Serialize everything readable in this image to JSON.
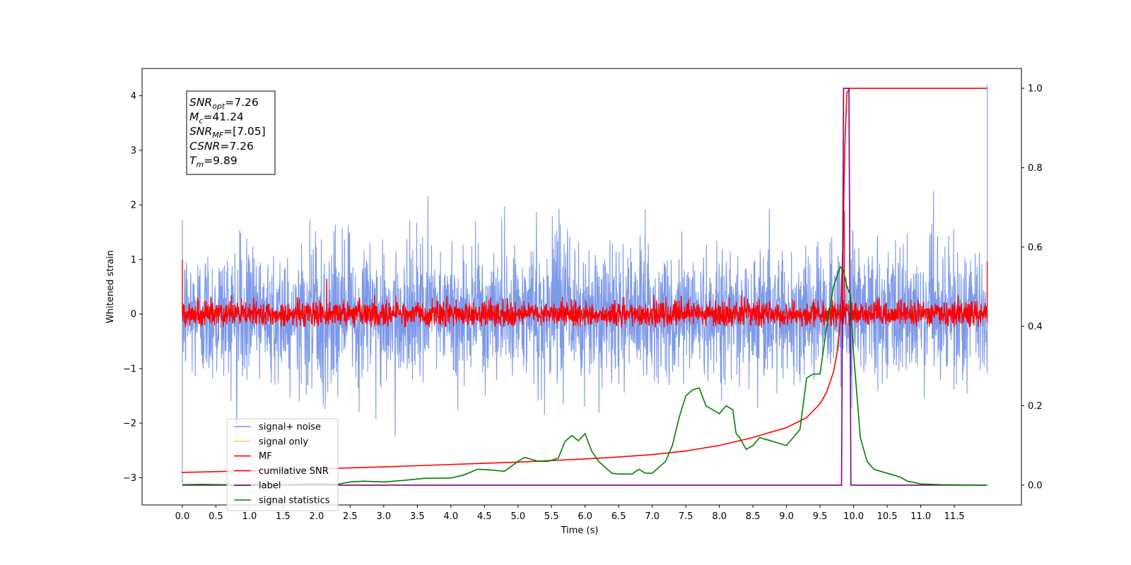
{
  "chart_data": {
    "type": "line",
    "xlabel": "Time (s)",
    "ylabel": "Whitened strain",
    "xlim": [
      -0.6,
      12.5
    ],
    "ylim": [
      -3.5,
      4.5
    ],
    "y2lim": [
      -0.05,
      1.05
    ],
    "x_ticks": [
      "0.0",
      "0.5",
      "1.0",
      "1.5",
      "2.0",
      "2.5",
      "3.0",
      "3.5",
      "4.0",
      "4.5",
      "5.0",
      "5.5",
      "6.0",
      "6.5",
      "7.0",
      "7.5",
      "8.0",
      "8.5",
      "9.0",
      "9.5",
      "10.0",
      "10.5",
      "11.0",
      "11.5"
    ],
    "y_ticks": [
      "−3",
      "−2",
      "−1",
      "0",
      "1",
      "2",
      "3",
      "4"
    ],
    "y2_ticks": [
      "0.0",
      "0.2",
      "0.4",
      "0.6",
      "0.8",
      "1.0"
    ],
    "legend": {
      "placement": "lower-left",
      "entries": [
        {
          "label": "signal+ noise",
          "color": "#7694e8"
        },
        {
          "label": "signal only",
          "color": "#ffd27f"
        },
        {
          "label": "MF",
          "color": "#ff0000"
        },
        {
          "label": "cumilative SNR",
          "color": "#ff0000"
        },
        {
          "label": "label",
          "color": "#800080"
        },
        {
          "label": "signal statistics",
          "color": "#008000"
        }
      ]
    },
    "annotation": {
      "lines": [
        {
          "sym": "SNR",
          "sub": "opt",
          "val": "=7.26"
        },
        {
          "sym": "M",
          "sub": "c",
          "val": "=41.24"
        },
        {
          "sym": "SNR",
          "sub": "MF",
          "val": "=[7.05]"
        },
        {
          "sym": "CSNR",
          "sub": "",
          "val": "=7.26"
        },
        {
          "sym": "T",
          "sub": "m",
          "val": "=9.89"
        }
      ]
    },
    "series": [
      {
        "name": "signal+ noise",
        "axis": "left",
        "kind": "noise",
        "x_range": [
          0.0,
          11.99
        ],
        "color": "#7694e8",
        "approx_std": 0.62,
        "approx_range": [
          -2.5,
          2.4
        ],
        "edge_spikes": [
          {
            "x": 0.0,
            "y": -3.1
          },
          {
            "x": 11.99,
            "y": 4.2
          }
        ]
      },
      {
        "name": "MF",
        "axis": "left",
        "kind": "noise",
        "x_range": [
          0.0,
          11.99
        ],
        "color": "#ff0000",
        "approx_std": 0.12,
        "approx_range": [
          -0.25,
          0.65
        ],
        "edge_spikes": [
          {
            "x": 0.0,
            "y": 1.0
          },
          {
            "x": 11.99,
            "y": 0.97
          }
        ],
        "features": [
          {
            "x": 2.15,
            "y": 0.65
          },
          {
            "x": 9.86,
            "y": 1.9
          }
        ]
      },
      {
        "name": "cumilative SNR",
        "axis": "right",
        "color": "#ff0000",
        "x": [
          0.0,
          0.0,
          1.0,
          2.0,
          3.0,
          4.0,
          5.0,
          6.0,
          6.5,
          7.0,
          7.5,
          8.0,
          8.5,
          9.0,
          9.3,
          9.5,
          9.6,
          9.7,
          9.75,
          9.8,
          9.84,
          9.87,
          9.9,
          9.95,
          11.99,
          11.99
        ],
        "y": [
          0.03,
          0.032,
          0.036,
          0.041,
          0.046,
          0.052,
          0.058,
          0.066,
          0.071,
          0.077,
          0.086,
          0.1,
          0.12,
          0.145,
          0.17,
          0.205,
          0.235,
          0.285,
          0.33,
          0.41,
          0.6,
          0.86,
          0.99,
          1.0,
          1.0,
          1.0
        ]
      },
      {
        "name": "label",
        "axis": "right",
        "color": "#800080",
        "x": [
          0.0,
          9.82,
          9.85,
          9.93,
          9.96,
          11.99
        ],
        "y": [
          0.0,
          0.0,
          1.0,
          1.0,
          0.0,
          0.0
        ]
      },
      {
        "name": "signal statistics",
        "axis": "right",
        "color": "#008000",
        "x": [
          0.0,
          0.3,
          0.6,
          1.0,
          1.5,
          2.0,
          2.3,
          2.5,
          2.7,
          3.0,
          3.3,
          3.6,
          4.0,
          4.2,
          4.4,
          4.6,
          4.8,
          5.0,
          5.1,
          5.2,
          5.3,
          5.45,
          5.6,
          5.7,
          5.8,
          5.9,
          6.0,
          6.1,
          6.2,
          6.4,
          6.5,
          6.7,
          6.8,
          6.9,
          7.0,
          7.2,
          7.3,
          7.4,
          7.5,
          7.6,
          7.7,
          7.8,
          7.9,
          8.0,
          8.1,
          8.2,
          8.25,
          8.3,
          8.4,
          8.5,
          8.6,
          8.7,
          8.8,
          9.0,
          9.1,
          9.2,
          9.3,
          9.4,
          9.5,
          9.6,
          9.7,
          9.8,
          9.85,
          9.9,
          9.95,
          10.0,
          10.1,
          10.2,
          10.3,
          10.5,
          10.7,
          10.8,
          11.0,
          11.3,
          11.99
        ],
        "y": [
          0.001,
          0.002,
          0.001,
          0.002,
          0.001,
          0.003,
          0.002,
          0.008,
          0.01,
          0.008,
          0.012,
          0.017,
          0.018,
          0.026,
          0.04,
          0.038,
          0.035,
          0.06,
          0.07,
          0.065,
          0.06,
          0.06,
          0.068,
          0.11,
          0.125,
          0.112,
          0.13,
          0.085,
          0.06,
          0.03,
          0.028,
          0.028,
          0.04,
          0.03,
          0.03,
          0.06,
          0.1,
          0.17,
          0.225,
          0.24,
          0.245,
          0.2,
          0.19,
          0.18,
          0.2,
          0.19,
          0.13,
          0.12,
          0.09,
          0.1,
          0.12,
          0.115,
          0.11,
          0.1,
          0.12,
          0.14,
          0.27,
          0.28,
          0.28,
          0.4,
          0.5,
          0.55,
          0.54,
          0.5,
          0.48,
          0.33,
          0.12,
          0.06,
          0.04,
          0.03,
          0.02,
          0.01,
          0.003,
          0.001,
          0.0
        ]
      }
    ]
  }
}
